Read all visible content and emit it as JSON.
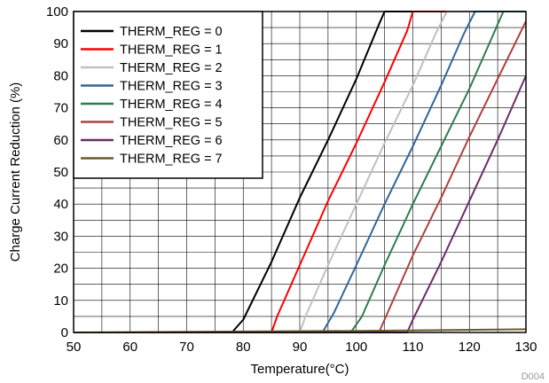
{
  "chart_data": {
    "type": "line",
    "title": "",
    "xlabel": "Temperature(°C)",
    "ylabel": "Charge Current Reduction (%)",
    "xlim": [
      50,
      130
    ],
    "ylim": [
      0,
      100
    ],
    "xticks": [
      50,
      60,
      70,
      80,
      90,
      100,
      110,
      120,
      130
    ],
    "yticks": [
      0,
      10,
      20,
      30,
      40,
      50,
      60,
      70,
      80,
      90,
      100
    ],
    "grid": true,
    "legend_position": "top-left",
    "figure_code": "D004",
    "series": [
      {
        "name": "THERM_REG = 0",
        "color": "#000000",
        "x": [
          50,
          78,
          80,
          85,
          90,
          95,
          100,
          104,
          105,
          130
        ],
        "y": [
          0,
          0,
          4,
          22,
          42,
          60,
          79,
          96,
          100,
          100
        ]
      },
      {
        "name": "THERM_REG = 1",
        "color": "#ff0000",
        "x": [
          50,
          85,
          86,
          90,
          95,
          100,
          105,
          109,
          110,
          130
        ],
        "y": [
          0,
          0,
          5,
          21,
          41,
          59,
          78,
          94,
          100,
          100
        ]
      },
      {
        "name": "THERM_REG = 2",
        "color": "#c0c0c0",
        "x": [
          50,
          90,
          91,
          95,
          100,
          105,
          110,
          114,
          116,
          130
        ],
        "y": [
          0,
          0,
          5,
          21,
          40,
          59,
          77,
          93,
          100,
          100
        ]
      },
      {
        "name": "THERM_REG = 3",
        "color": "#336699",
        "x": [
          50,
          94,
          96,
          100,
          105,
          110,
          115,
          119,
          121,
          130
        ],
        "y": [
          0,
          0,
          6,
          21,
          40,
          58,
          77,
          93,
          100,
          100
        ]
      },
      {
        "name": "THERM_REG = 4",
        "color": "#2e7d4f",
        "x": [
          50,
          99,
          101,
          105,
          110,
          115,
          120,
          124,
          126,
          130
        ],
        "y": [
          0,
          0,
          5,
          21,
          40,
          58,
          76,
          92,
          100,
          100
        ]
      },
      {
        "name": "THERM_REG = 5",
        "color": "#b04040",
        "x": [
          50,
          104,
          105,
          110,
          115,
          120,
          125,
          130
        ],
        "y": [
          0,
          0,
          4,
          24,
          42,
          61,
          79,
          97
        ]
      },
      {
        "name": "THERM_REG = 6",
        "color": "#6b2d6b",
        "x": [
          50,
          109,
          110,
          115,
          120,
          125,
          130
        ],
        "y": [
          0,
          0,
          4,
          22,
          41,
          60,
          80
        ]
      },
      {
        "name": "THERM_REG = 7",
        "color": "#6b5a2e",
        "x": [
          50,
          100,
          130
        ],
        "y": [
          0,
          0.5,
          1
        ]
      }
    ]
  }
}
